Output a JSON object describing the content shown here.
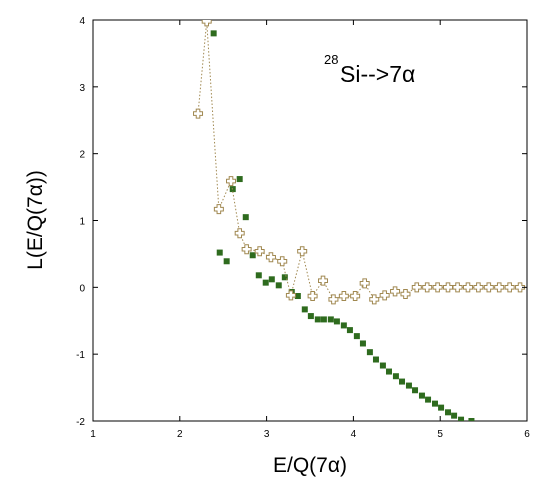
{
  "chart_data": {
    "type": "scatter",
    "x_label": "E/Q(7α)",
    "y_label": "L(E/Q(7α))",
    "annotation": {
      "superscript": "28",
      "text": "Si-->7α"
    },
    "xlim": [
      1,
      6
    ],
    "xticks": [
      1,
      2,
      3,
      4,
      5,
      6
    ],
    "ylim": [
      -2,
      4
    ],
    "yticks": [
      -2,
      -1,
      0,
      1,
      2,
      3,
      4
    ],
    "series": [
      {
        "color": "#2e6b1e",
        "marker": "square",
        "line": "none",
        "x": [
          2.39,
          2.46,
          2.54,
          2.61,
          2.69,
          2.76,
          2.84,
          2.91,
          2.99,
          3.06,
          3.14,
          3.21,
          3.29,
          3.36,
          3.44,
          3.51,
          3.59,
          3.66,
          3.74,
          3.81,
          3.89,
          3.96,
          4.04,
          4.11,
          4.19,
          4.26,
          4.34,
          4.41,
          4.49,
          4.56,
          4.64,
          4.71,
          4.79,
          4.86,
          4.94,
          5.01,
          5.09,
          5.16,
          5.24,
          5.36
        ],
        "values": [
          3.8,
          0.52,
          0.39,
          1.47,
          1.62,
          1.05,
          0.48,
          0.18,
          0.07,
          0.12,
          0.03,
          0.15,
          -0.07,
          -0.13,
          -0.33,
          -0.43,
          -0.48,
          -0.48,
          -0.48,
          -0.51,
          -0.57,
          -0.64,
          -0.73,
          -0.84,
          -0.97,
          -1.08,
          -1.17,
          -1.26,
          -1.33,
          -1.41,
          -1.47,
          -1.54,
          -1.62,
          -1.68,
          -1.74,
          -1.8,
          -1.87,
          -1.92,
          -1.98,
          -2.0
        ]
      },
      {
        "color": "#a08850",
        "marker": "cross",
        "line": "dotted",
        "x": [
          2.21,
          2.31,
          2.45,
          2.59,
          2.69,
          2.77,
          2.92,
          3.05,
          3.18,
          3.28,
          3.41,
          3.53,
          3.65,
          3.77,
          3.89,
          4.02,
          4.13,
          4.24,
          4.36,
          4.48,
          4.6,
          4.73,
          4.85,
          4.97,
          5.09,
          5.2,
          5.32,
          5.44,
          5.56,
          5.68,
          5.8,
          5.92
        ],
        "values": [
          2.6,
          3.98,
          1.17,
          1.59,
          0.81,
          0.57,
          0.54,
          0.45,
          0.39,
          -0.12,
          0.54,
          -0.13,
          0.1,
          -0.18,
          -0.13,
          -0.13,
          0.06,
          -0.18,
          -0.12,
          -0.06,
          -0.1,
          0.0,
          0.0,
          0.0,
          0.0,
          0.0,
          0.0,
          0.0,
          0.0,
          0.0,
          0.0,
          0.0
        ]
      }
    ]
  }
}
